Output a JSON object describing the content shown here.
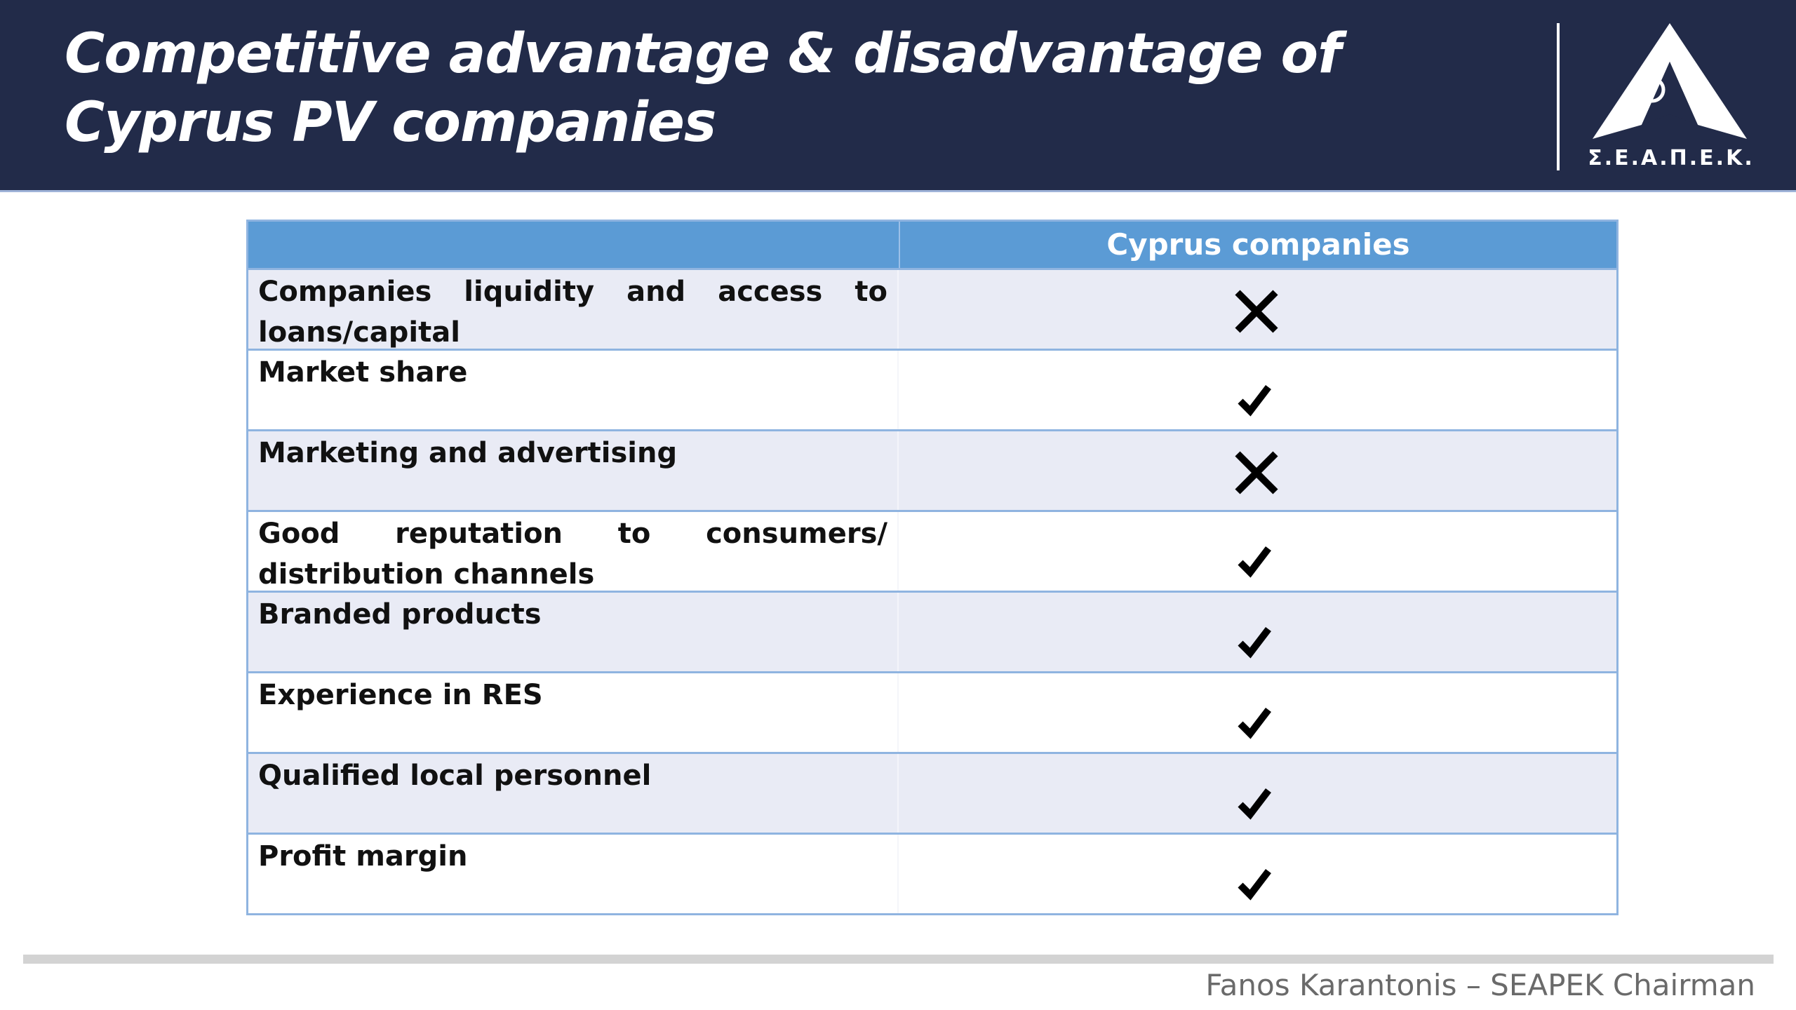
{
  "header": {
    "title_lines": [
      "Competitive advantage & disadvantage of",
      "Cyprus PV companies"
    ],
    "logo_text": "Σ.Ε.Α.Π.Ε.Κ."
  },
  "table": {
    "columns": [
      "Cyprus companies"
    ],
    "rows": [
      {
        "label": "Companies liquidity and access to loans/capital",
        "advantage": false
      },
      {
        "label": "Market share",
        "advantage": true
      },
      {
        "label": "Marketing and advertising",
        "advantage": false
      },
      {
        "label": "Good reputation to consumers/ distribution channels",
        "advantage": true
      },
      {
        "label": "Branded products",
        "advantage": true
      },
      {
        "label": "Experience in RES",
        "advantage": true
      },
      {
        "label": "Qualified local personnel",
        "advantage": true
      },
      {
        "label": "Profit margin",
        "advantage": true
      }
    ]
  },
  "footer": {
    "text": "Fanos Karantonis – SEAPEK Chairman"
  }
}
